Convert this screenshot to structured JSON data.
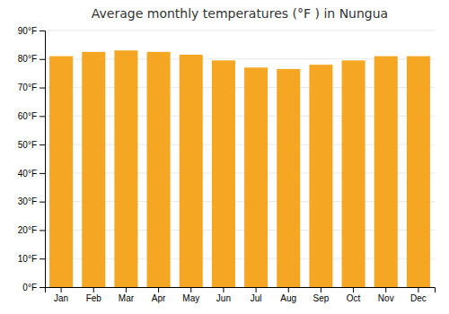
{
  "chart_data": {
    "type": "bar",
    "title": "Average monthly temperatures (°F ) in Nungua",
    "categories": [
      "Jan",
      "Feb",
      "Mar",
      "Apr",
      "May",
      "Jun",
      "Jul",
      "Aug",
      "Sep",
      "Oct",
      "Nov",
      "Dec"
    ],
    "values": [
      81,
      82.5,
      83,
      82.5,
      81.5,
      79.5,
      77,
      76.5,
      78,
      79.5,
      81,
      81
    ],
    "color": "#F5A623",
    "ylim": [
      0,
      90
    ],
    "yticks": [
      {
        "value": 0,
        "label": "0°F"
      },
      {
        "value": 10,
        "label": "10°F"
      },
      {
        "value": 20,
        "label": "20°F"
      },
      {
        "value": 30,
        "label": "30°F"
      },
      {
        "value": 40,
        "label": "40°F"
      },
      {
        "value": 50,
        "label": "50°F"
      },
      {
        "value": 60,
        "label": "60°F"
      },
      {
        "value": 70,
        "label": "70°F"
      },
      {
        "value": 80,
        "label": "80°F"
      },
      {
        "value": 90,
        "label": "90°F"
      }
    ],
    "grid": true
  }
}
